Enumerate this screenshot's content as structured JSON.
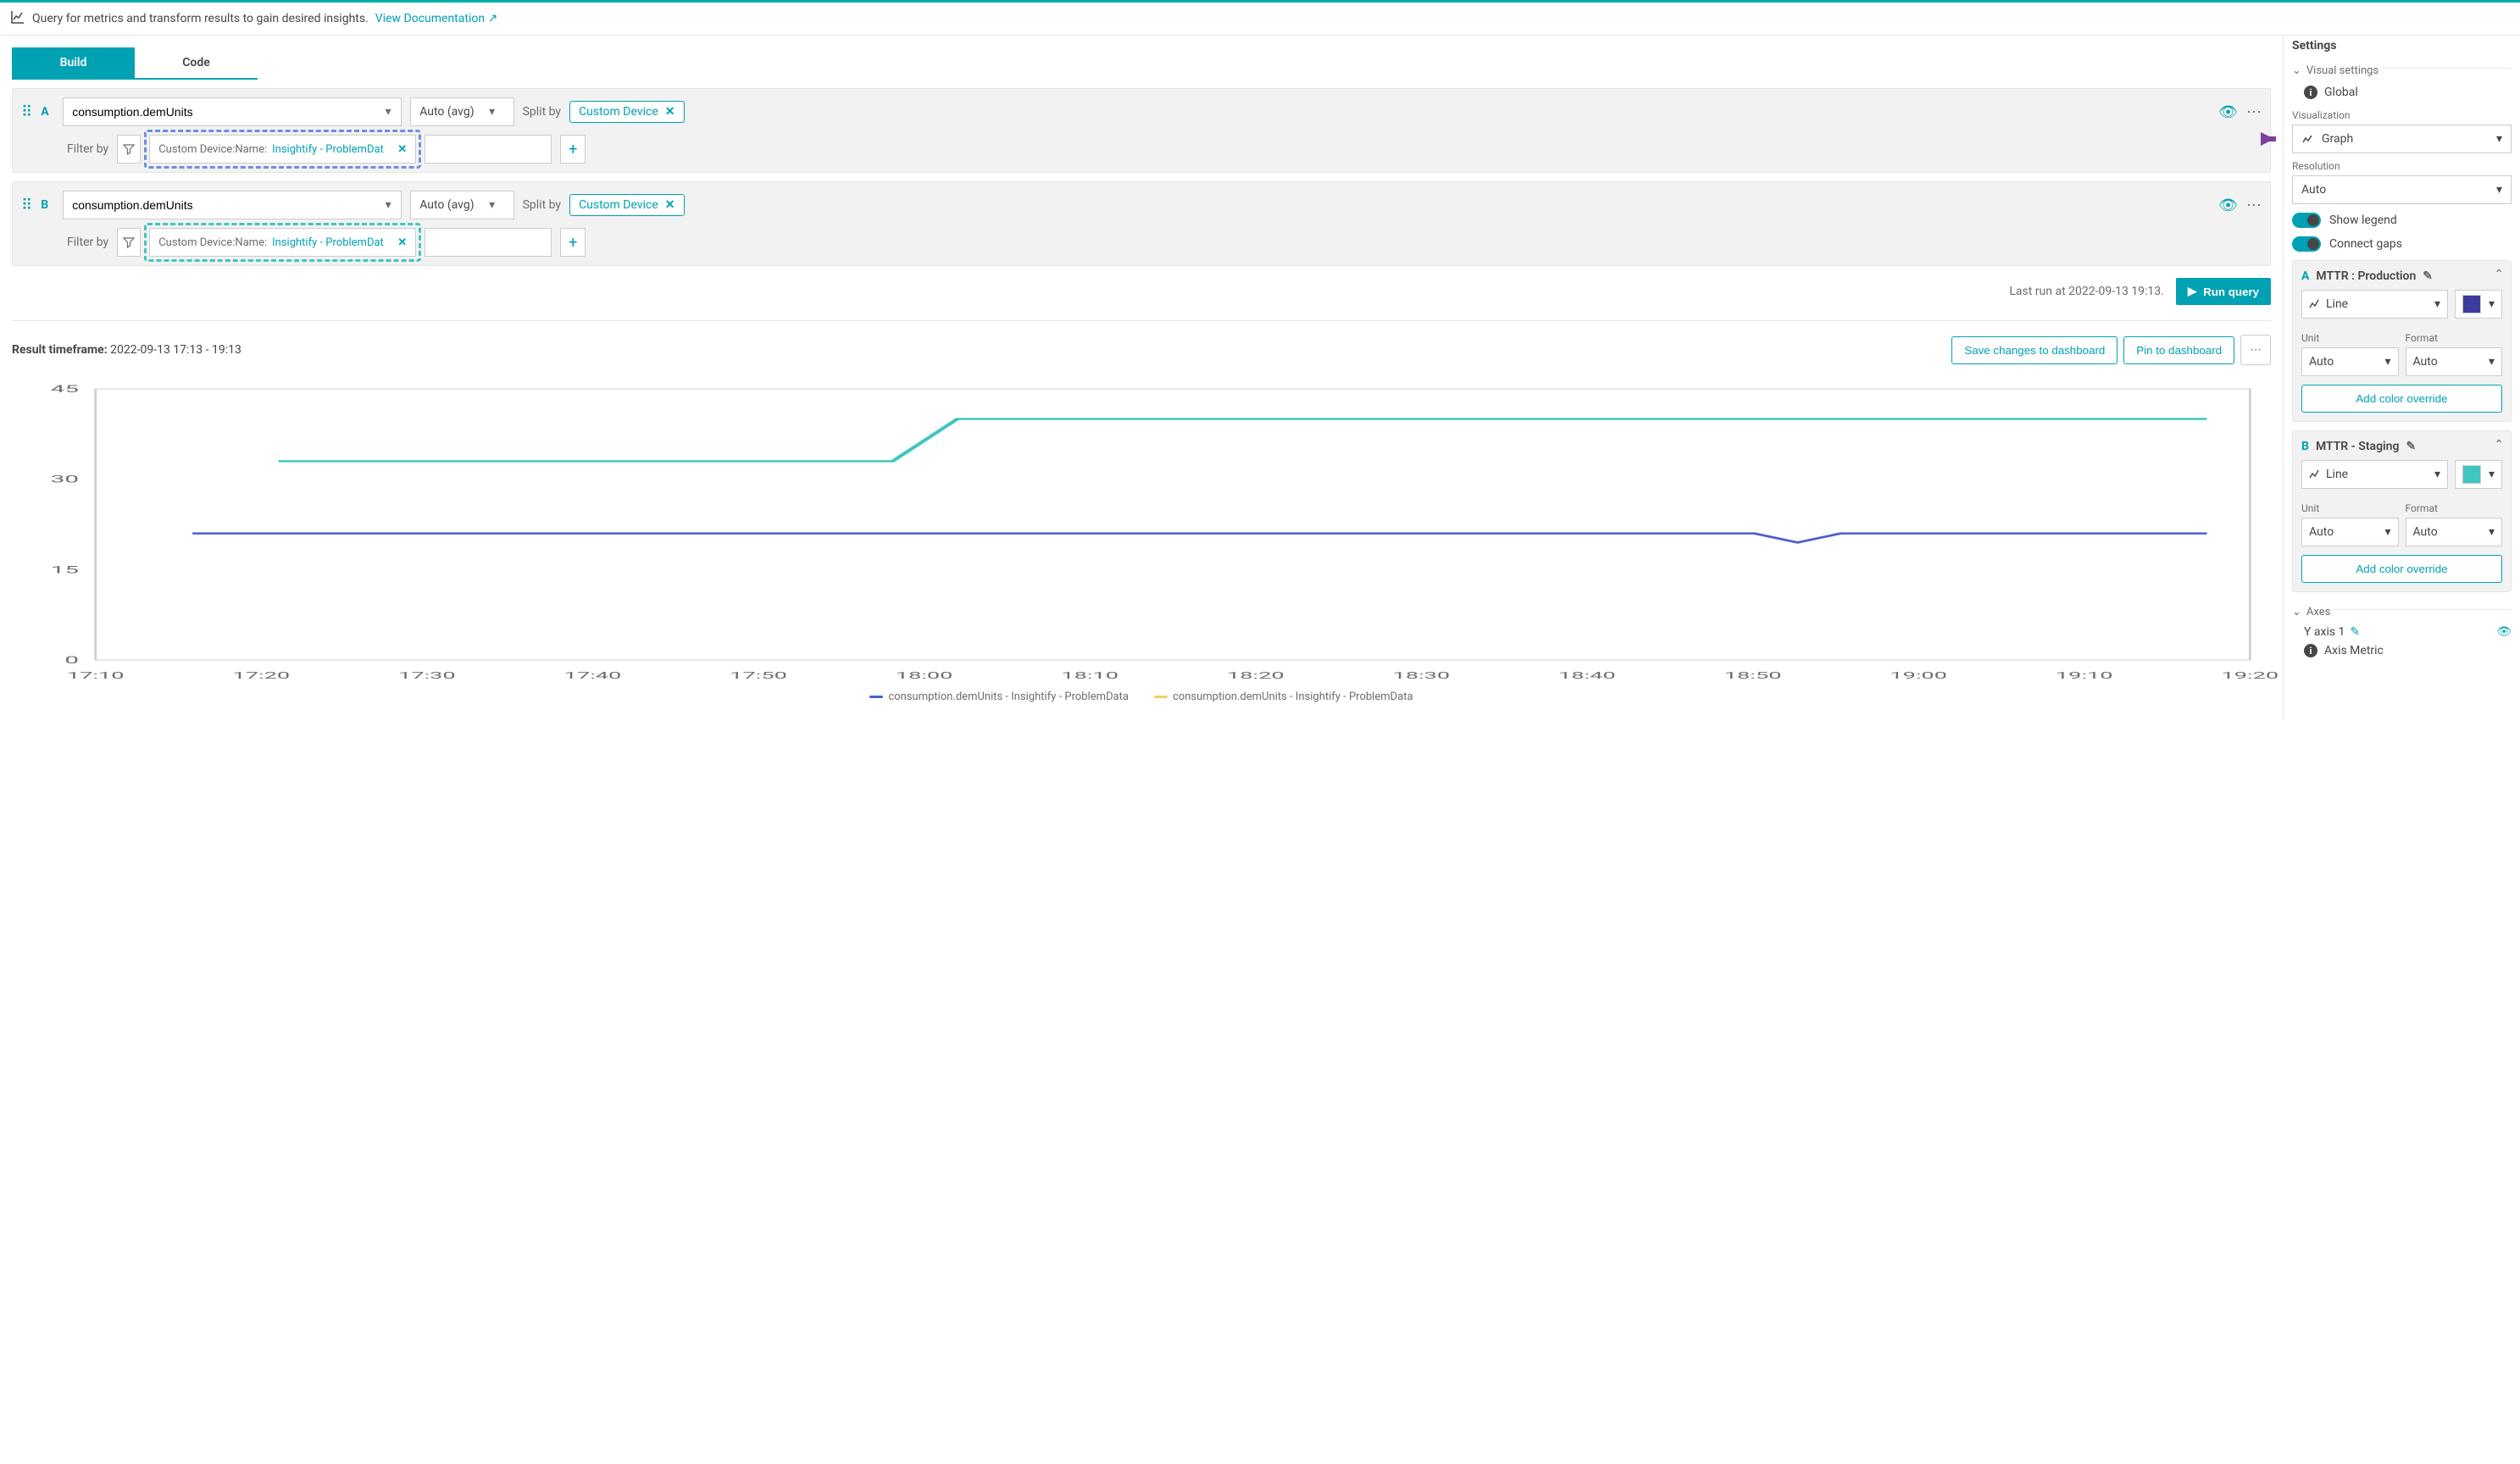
{
  "topbar": {
    "text": "Query for metrics and transform results to gain desired insights.",
    "link": "View Documentation"
  },
  "tabs": {
    "build": "Build",
    "code": "Code",
    "active": "build"
  },
  "queries": [
    {
      "letter": "A",
      "metric": "consumption.demUnits",
      "agg": "Auto (avg)",
      "split_label": "Split by",
      "split_chip": "Custom Device",
      "filter_label": "Filter by",
      "filter_key": "Custom Device:Name:",
      "filter_val": "Insightify - ProblemDat",
      "dash_color": "#6b8fe0"
    },
    {
      "letter": "B",
      "metric": "consumption.demUnits",
      "agg": "Auto (avg)",
      "split_label": "Split by",
      "split_chip": "Custom Device",
      "filter_label": "Filter by",
      "filter_key": "Custom Device:Name:",
      "filter_val": "Insightify - ProblemDat",
      "dash_color": "#3fc6c0"
    }
  ],
  "run": {
    "lastrun": "Last run at 2022-09-13 19:13.",
    "btn": "Run query"
  },
  "result": {
    "label": "Result timeframe:",
    "range": "2022-09-13 17:13 - 19:13",
    "save": "Save changes to dashboard",
    "pin": "Pin to dashboard"
  },
  "chart": {
    "y_ticks": [
      0,
      15,
      30,
      45
    ],
    "x_ticks": [
      "17:10",
      "17:20",
      "17:30",
      "17:40",
      "17:50",
      "18:00",
      "18:10",
      "18:20",
      "18:30",
      "18:40",
      "18:50",
      "19:00",
      "19:10",
      "19:20"
    ],
    "y_max": 45,
    "background": "#ffffff",
    "grid_color": "#e6e6e6",
    "axis_color": "#cccccc",
    "axis_label_color": "#6d6d6d",
    "series": [
      {
        "name": "consumption.demUnits - Insightify - ProblemData",
        "color": "#4b5fcf",
        "points": [
          {
            "x": 0.045,
            "y": 21
          },
          {
            "x": 0.77,
            "y": 21
          },
          {
            "x": 0.79,
            "y": 19.5
          },
          {
            "x": 0.81,
            "y": 21
          },
          {
            "x": 0.98,
            "y": 21
          }
        ]
      },
      {
        "name": "consumption.demUnits - Insightify - ProblemData",
        "color": "#3fc6c0",
        "points": [
          {
            "x": 0.085,
            "y": 33
          },
          {
            "x": 0.37,
            "y": 33
          },
          {
            "x": 0.4,
            "y": 40
          },
          {
            "x": 0.98,
            "y": 40
          }
        ]
      }
    ],
    "legend_swatch_alt": "#f0d060"
  },
  "settings": {
    "title": "Settings",
    "visual": "Visual settings",
    "global": "Global",
    "viz_label": "Visualization",
    "viz_value": "Graph",
    "res_label": "Resolution",
    "res_value": "Auto",
    "legend_toggle": "Show legend",
    "gaps_toggle": "Connect gaps",
    "series": [
      {
        "letter": "A",
        "name": "MTTR : Production",
        "chart_type": "Line",
        "swatch": "#3b3b9e",
        "unit_label": "Unit",
        "unit_value": "Auto",
        "format_label": "Format",
        "format_value": "Auto",
        "override": "Add color override"
      },
      {
        "letter": "B",
        "name": "MTTR - Staging",
        "chart_type": "Line",
        "swatch": "#3fc6c0",
        "unit_label": "Unit",
        "unit_value": "Auto",
        "format_label": "Format",
        "format_value": "Auto",
        "override": "Add color override"
      }
    ],
    "axes_label": "Axes",
    "yaxis_label": "Y axis 1",
    "axis_metric": "Axis Metric"
  }
}
